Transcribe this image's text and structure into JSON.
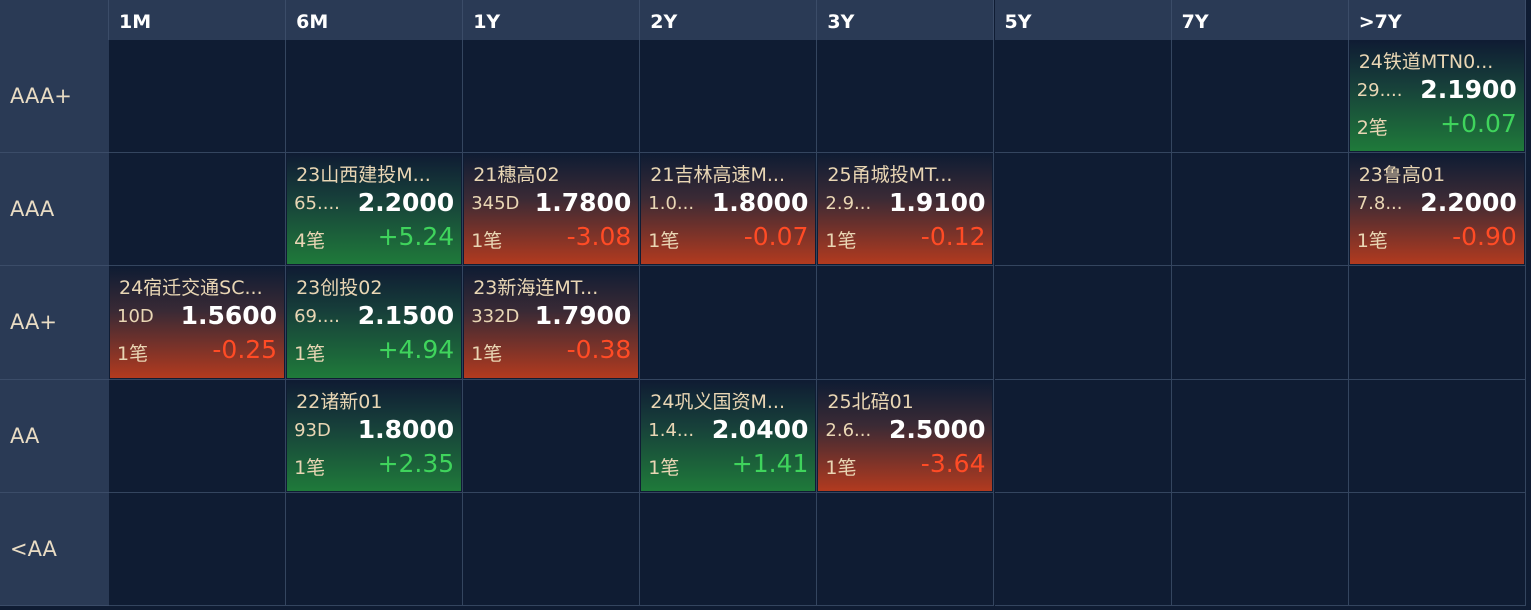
{
  "header": {
    "columns": [
      "1M",
      "6M",
      "1Y",
      "2Y",
      "3Y",
      "5Y",
      "7Y",
      ">7Y"
    ]
  },
  "rows": [
    {
      "label": "AAA+",
      "cells": [
        null,
        null,
        null,
        null,
        null,
        null,
        null,
        {
          "name": "24铁道MTN0...",
          "term": "29....",
          "yield": "2.1900",
          "count": "2笔",
          "change": "+0.07"
        }
      ]
    },
    {
      "label": "AAA",
      "cells": [
        null,
        {
          "name": "23山西建投M...",
          "term": "65....",
          "yield": "2.2000",
          "count": "4笔",
          "change": "+5.24"
        },
        {
          "name": "21穗高02",
          "term": "345D",
          "yield": "1.7800",
          "count": "1笔",
          "change": "-3.08"
        },
        {
          "name": "21吉林高速M...",
          "term": "1.0...",
          "yield": "1.8000",
          "count": "1笔",
          "change": "-0.07"
        },
        {
          "name": "25甬城投MT...",
          "term": "2.9...",
          "yield": "1.9100",
          "count": "1笔",
          "change": "-0.12"
        },
        null,
        null,
        {
          "name": "23鲁高01",
          "term": "7.8...",
          "yield": "2.2000",
          "count": "1笔",
          "change": "-0.90"
        }
      ]
    },
    {
      "label": "AA+",
      "cells": [
        {
          "name": "24宿迁交通SC...",
          "term": "10D",
          "yield": "1.5600",
          "count": "1笔",
          "change": "-0.25"
        },
        {
          "name": "23创投02",
          "term": "69....",
          "yield": "2.1500",
          "count": "1笔",
          "change": "+4.94"
        },
        {
          "name": "23新海连MT...",
          "term": "332D",
          "yield": "1.7900",
          "count": "1笔",
          "change": "-0.38"
        },
        null,
        null,
        null,
        null,
        null
      ]
    },
    {
      "label": "AA",
      "cells": [
        null,
        {
          "name": "22诸新01",
          "term": "93D",
          "yield": "1.8000",
          "count": "1笔",
          "change": "+2.35"
        },
        null,
        {
          "name": "24巩义国资M...",
          "term": "1.4...",
          "yield": "2.0400",
          "count": "1笔",
          "change": "+1.41"
        },
        {
          "name": "25北碚01",
          "term": "2.6...",
          "yield": "2.5000",
          "count": "1笔",
          "change": "-3.64"
        },
        null,
        null,
        null
      ]
    },
    {
      "label": "<AA",
      "cells": [
        null,
        null,
        null,
        null,
        null,
        null,
        null,
        null
      ]
    }
  ]
}
